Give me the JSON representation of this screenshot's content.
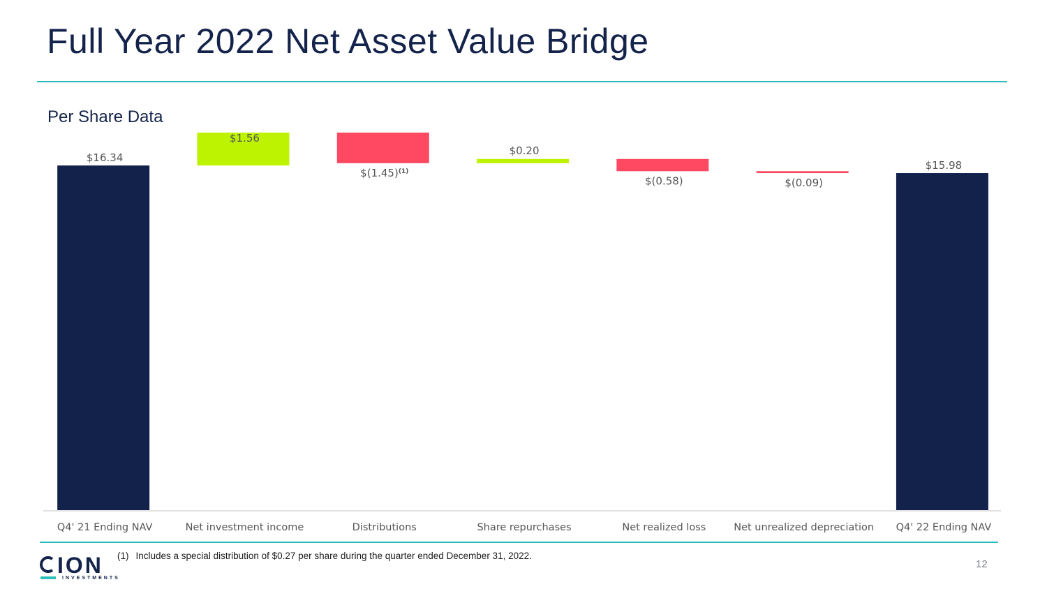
{
  "header": {
    "title": "Full Year 2022 Net Asset Value Bridge",
    "subtitle": "Per Share Data"
  },
  "chart_data": {
    "type": "waterfall",
    "title": "Per Share Data",
    "categories": [
      "Q4' 21 Ending NAV",
      "Net investment income",
      "Distributions",
      "Share repurchases",
      "Net realized loss",
      "Net unrealized depreciation",
      "Q4' 22 Ending NAV"
    ],
    "values": [
      16.34,
      1.56,
      -1.45,
      0.2,
      -0.58,
      -0.09,
      15.98
    ],
    "kinds": [
      "total",
      "increase",
      "decrease",
      "increase",
      "decrease",
      "decrease",
      "total"
    ],
    "labels": [
      "$16.34",
      "$1.56",
      "$(1.45)",
      "$0.20",
      "$(0.58)",
      "$(0.09)",
      "$15.98"
    ],
    "label_notes": [
      "",
      "",
      "(1)",
      "",
      "",
      "",
      ""
    ],
    "colors": {
      "total": "#13224b",
      "increase": "#bdf301",
      "decrease": "#ff4862"
    },
    "ylim": [
      0,
      17.9
    ]
  },
  "footer": {
    "footnote_number": "(1)",
    "footnote_text": "Includes a special distribution of $0.27 per share during the quarter ended December 31, 2022.",
    "page_number": "12",
    "logo_word": "ION",
    "logo_sub": "INVESTMENTS"
  }
}
